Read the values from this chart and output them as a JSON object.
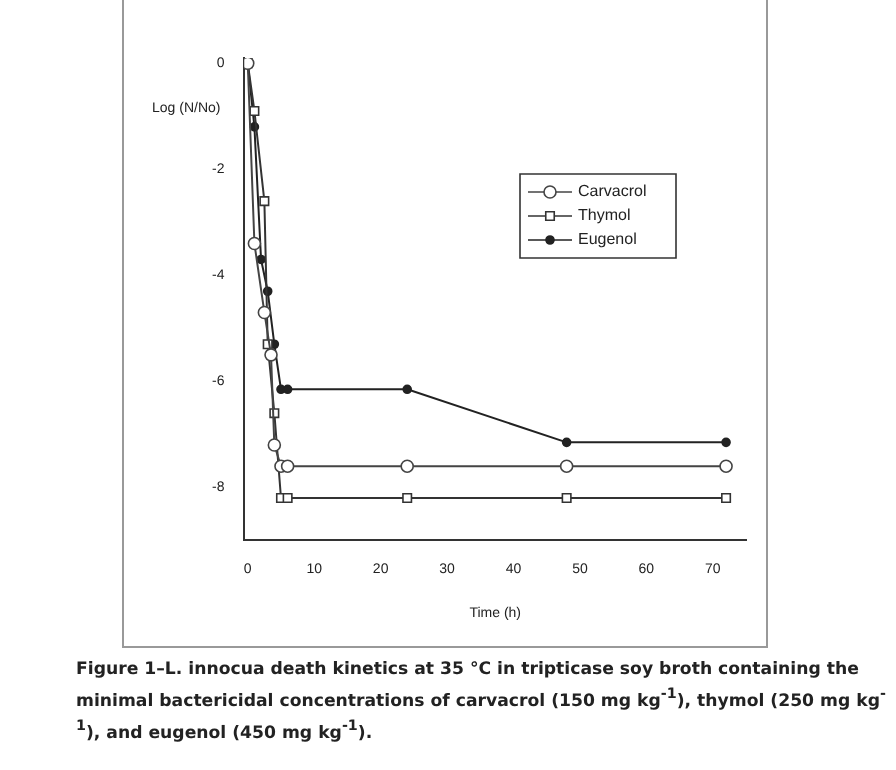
{
  "chart_data": {
    "type": "line",
    "ylabel": "Log (N/No)",
    "xlabel": "Time (h)",
    "xlim": [
      -0.5,
      75
    ],
    "xticks": [
      0,
      10,
      20,
      30,
      40,
      50,
      60,
      70
    ],
    "ylim": [
      -9,
      0.1
    ],
    "yticks": [
      0,
      -2,
      -4,
      -6,
      -8
    ],
    "grid": false,
    "legend": "top right",
    "line_style": "solid",
    "series": [
      {
        "name": "Carvacrol",
        "color": "#444444",
        "marker": "circle",
        "x": [
          0,
          1,
          2.5,
          3.5,
          4,
          5,
          6,
          24,
          48,
          72
        ],
        "values": [
          0,
          -3.4,
          -4.7,
          -5.5,
          -7.2,
          -7.6,
          -7.6,
          -7.6,
          -7.6,
          -7.6
        ]
      },
      {
        "name": "Thymol",
        "color": "#333333",
        "marker": "square",
        "x": [
          0,
          1,
          2.5,
          3,
          4,
          5,
          6,
          24,
          48,
          72
        ],
        "values": [
          0,
          -0.9,
          -2.6,
          -5.3,
          -6.6,
          -8.2,
          -8.2,
          -8.2,
          -8.2,
          -8.2
        ]
      },
      {
        "name": "Eugenol",
        "color": "#222222",
        "marker": "circle",
        "x": [
          0,
          1,
          2,
          3,
          4,
          5,
          6,
          24,
          48,
          72
        ],
        "values": [
          0,
          -1.2,
          -3.7,
          -4.3,
          -5.3,
          -6.15,
          -6.15,
          -6.15,
          -7.15,
          -7.15
        ]
      }
    ],
    "annotations": [
      "Figure 1–L. innocua death kinetics at 35 °C in tripticase soy broth containing the minimal bactericidal concentrations of carvacrol (150 mg kg$^{-1}$), thymol (250 mg kg$^{-1}$), and eugenol (450 mg kg$^{-1}$)."
    ]
  }
}
